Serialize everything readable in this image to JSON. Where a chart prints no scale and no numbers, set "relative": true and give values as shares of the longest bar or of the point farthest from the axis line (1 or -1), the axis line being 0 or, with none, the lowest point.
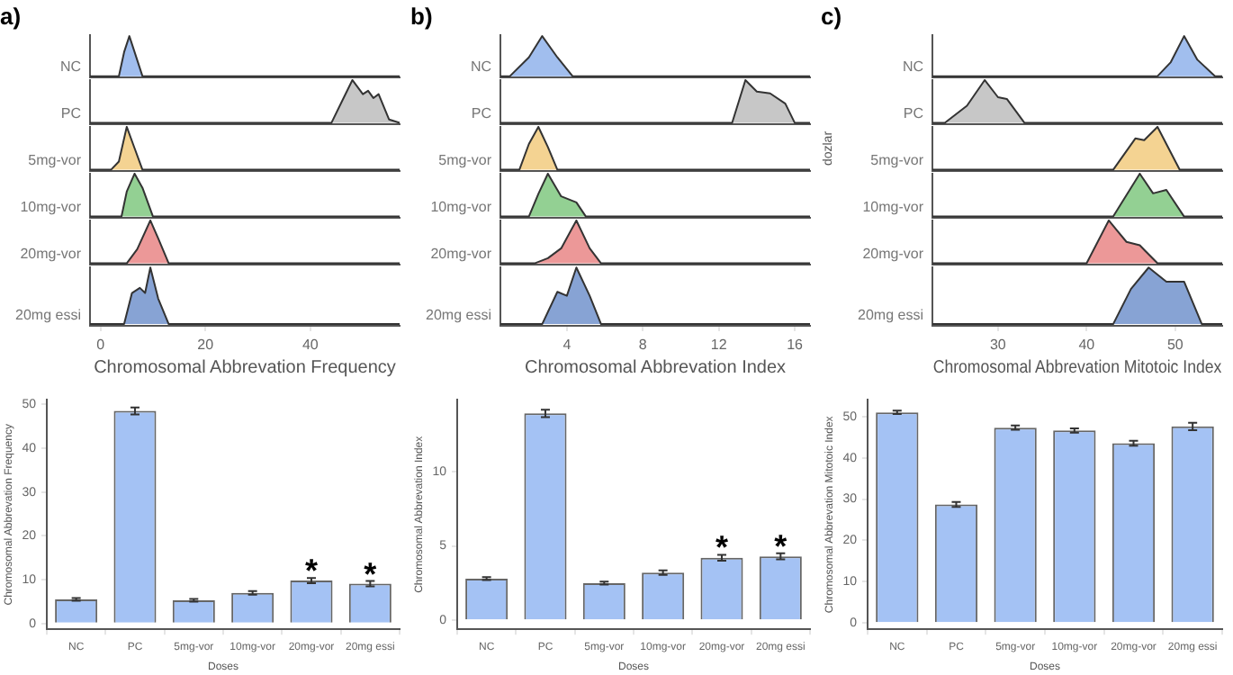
{
  "chart_data": [
    {
      "type": "area",
      "title": "a)",
      "relative": true,
      "xlim": [
        -2,
        57
      ],
      "tick_labels": false,
      "series": [
        {
          "name": "NC",
          "color": "#7fa7e8",
          "x": [
            -2,
            3.5,
            4.5,
            5.5,
            6.5,
            8,
            57
          ],
          "values": [
            0,
            0,
            0.6,
            1,
            0.6,
            0,
            0
          ]
        }
      ]
    },
    {
      "type": "area",
      "relative": true,
      "xlim": [
        -2,
        57
      ],
      "tick_labels": false,
      "series": [
        {
          "name": "PC",
          "color": "#b3b3b3",
          "x": [
            -2,
            44,
            46,
            48,
            50,
            51,
            52,
            53,
            55,
            57
          ],
          "values": [
            0,
            0,
            0.5,
            1,
            0.67,
            0.75,
            0.58,
            0.67,
            0.08,
            0
          ]
        }
      ]
    },
    {
      "type": "area",
      "relative": true,
      "xlim": [
        -2,
        57
      ],
      "tick_labels": false,
      "series": [
        {
          "name": "5mg-vor",
          "color": "#f0c36b",
          "x": [
            -2,
            2,
            3.5,
            5,
            6.5,
            8,
            57
          ],
          "values": [
            0,
            0,
            0.19,
            1,
            0.5,
            0,
            0
          ]
        }
      ]
    },
    {
      "type": "area",
      "relative": true,
      "xlim": [
        -2,
        57
      ],
      "tick_labels": false,
      "series": [
        {
          "name": "10mg-vor",
          "color": "#6cbf6c",
          "x": [
            -2,
            4,
            5,
            6.5,
            8,
            10,
            57
          ],
          "values": [
            0,
            0,
            0.58,
            1,
            0.67,
            0,
            0
          ]
        }
      ]
    },
    {
      "type": "area",
      "relative": true,
      "xlim": [
        -2,
        57
      ],
      "tick_labels": false,
      "series": [
        {
          "name": "20mg-vor",
          "color": "#e57373",
          "x": [
            -2,
            5,
            7,
            9.5,
            11,
            13,
            57
          ],
          "values": [
            0,
            0,
            0.33,
            1,
            0.58,
            0,
            0
          ]
        }
      ]
    },
    {
      "type": "area",
      "xlabel": "Chromosomal Abbrevation Frequency",
      "relative": true,
      "xlim": [
        -2,
        57
      ],
      "xticks": [
        0,
        20,
        40
      ],
      "tick_labels": "x",
      "series": [
        {
          "name": "20mg essi",
          "color": "#5b82c4",
          "x": [
            -2,
            4.5,
            6,
            7.5,
            8.5,
            9.5,
            11,
            13,
            57
          ],
          "values": [
            0,
            0,
            0.55,
            0.64,
            0.55,
            1,
            0.45,
            0,
            0
          ]
        }
      ]
    },
    {
      "type": "area",
      "title": "b)",
      "relative": true,
      "xlim": [
        0.5,
        16.8
      ],
      "tick_labels": false,
      "series": [
        {
          "name": "NC",
          "color": "#7fa7e8",
          "x": [
            0.5,
            1,
            2,
            2.7,
            3.5,
            4.3,
            16.8
          ],
          "values": [
            0,
            0,
            0.47,
            1,
            0.47,
            0,
            0
          ]
        }
      ]
    },
    {
      "type": "area",
      "relative": true,
      "xlim": [
        0.5,
        16.8
      ],
      "tick_labels": false,
      "series": [
        {
          "name": "PC",
          "color": "#b3b3b3",
          "x": [
            0.5,
            12.7,
            13.4,
            14,
            14.7,
            15.5,
            16,
            16.8
          ],
          "values": [
            0,
            0,
            1,
            0.73,
            0.69,
            0.45,
            0,
            0
          ]
        }
      ]
    },
    {
      "type": "area",
      "relative": true,
      "xlim": [
        0.5,
        16.8
      ],
      "tick_labels": false,
      "series": [
        {
          "name": "5mg-vor",
          "color": "#f0c36b",
          "x": [
            0.5,
            1.5,
            2,
            2.5,
            3,
            3.5,
            16.8
          ],
          "values": [
            0,
            0,
            0.6,
            1,
            0.53,
            0,
            0
          ]
        }
      ]
    },
    {
      "type": "area",
      "relative": true,
      "xlim": [
        0.5,
        16.8
      ],
      "tick_labels": false,
      "series": [
        {
          "name": "10mg-vor",
          "color": "#6cbf6c",
          "x": [
            0.5,
            2,
            2.5,
            3,
            3.7,
            4.5,
            5,
            16.8
          ],
          "values": [
            0,
            0,
            0.53,
            1,
            0.47,
            0.33,
            0,
            0
          ]
        }
      ]
    },
    {
      "type": "area",
      "relative": true,
      "xlim": [
        0.5,
        16.8
      ],
      "tick_labels": false,
      "series": [
        {
          "name": "20mg-vor",
          "color": "#e57373",
          "x": [
            0.5,
            2.3,
            3,
            3.7,
            4.5,
            5.2,
            5.8,
            16.8
          ],
          "values": [
            0,
            0,
            0.12,
            0.35,
            1,
            0.35,
            0,
            0
          ]
        }
      ]
    },
    {
      "type": "area",
      "xlabel": "Chromosomal Abbrevation Index",
      "relative": true,
      "xlim": [
        0.5,
        16.8
      ],
      "xticks": [
        4,
        8,
        12,
        16
      ],
      "tick_labels": "x",
      "series": [
        {
          "name": "20mg essi",
          "color": "#5b82c4",
          "x": [
            0.5,
            2.7,
            3.5,
            4,
            4.5,
            5.2,
            5.8,
            16.8
          ],
          "values": [
            0,
            0,
            0.57,
            0.5,
            1,
            0.5,
            0,
            0
          ]
        }
      ]
    },
    {
      "type": "area",
      "title": "c)",
      "relative": true,
      "xlim": [
        22.6,
        55.3
      ],
      "tick_labels": false,
      "series": [
        {
          "name": "NC",
          "color": "#7fa7e8",
          "x": [
            22.6,
            48,
            49.5,
            51,
            52.5,
            54.5,
            55.3
          ],
          "values": [
            0,
            0,
            0.35,
            1,
            0.41,
            0,
            0
          ]
        }
      ]
    },
    {
      "type": "area",
      "relative": true,
      "xlim": [
        22.6,
        55.3
      ],
      "tick_labels": false,
      "series": [
        {
          "name": "PC",
          "color": "#b3b3b3",
          "x": [
            22.6,
            24,
            26.5,
            28.5,
            30,
            31,
            33,
            55.3
          ],
          "values": [
            0,
            0,
            0.4,
            1,
            0.6,
            0.56,
            0,
            0
          ]
        }
      ]
    },
    {
      "type": "area",
      "relative": true,
      "xlim": [
        22.6,
        55.3
      ],
      "tick_labels": false,
      "ylabel": "dozlar",
      "series": [
        {
          "name": "5mg-vor",
          "color": "#f0c36b",
          "x": [
            22.6,
            43,
            45.5,
            46.5,
            48,
            50.5,
            55.3
          ],
          "values": [
            0,
            0,
            0.73,
            0.69,
            1,
            0,
            0
          ]
        }
      ]
    },
    {
      "type": "area",
      "relative": true,
      "xlim": [
        22.6,
        55.3
      ],
      "tick_labels": false,
      "series": [
        {
          "name": "10mg-vor",
          "color": "#6cbf6c",
          "x": [
            22.6,
            43,
            46,
            47.5,
            49,
            51,
            55.3
          ],
          "values": [
            0,
            0,
            1,
            0.54,
            0.62,
            0,
            0
          ]
        }
      ]
    },
    {
      "type": "area",
      "relative": true,
      "xlim": [
        22.6,
        55.3
      ],
      "tick_labels": false,
      "series": [
        {
          "name": "20mg-vor",
          "color": "#e57373",
          "x": [
            22.6,
            40,
            42.5,
            44.5,
            46,
            48,
            55.3
          ],
          "values": [
            0,
            0,
            1,
            0.5,
            0.42,
            0,
            0
          ]
        }
      ]
    },
    {
      "type": "area",
      "xlabel": "Chromosomal Abbrevation Mitotoic Index",
      "relative": true,
      "xlim": [
        22.6,
        55.3
      ],
      "xticks": [
        30,
        40,
        50
      ],
      "tick_labels": "x",
      "series": [
        {
          "name": "20mg essi",
          "color": "#5b82c4",
          "x": [
            22.6,
            43,
            45,
            47,
            49,
            51,
            53,
            55.3
          ],
          "values": [
            0,
            0,
            0.62,
            1,
            0.75,
            0.75,
            0,
            0
          ]
        }
      ]
    },
    {
      "type": "bar",
      "xlabel": "Doses",
      "ylabel": "Chromosomal Abbrevation Frequency",
      "categories": [
        "NC",
        "PC",
        "5mg-vor",
        "10mg-vor",
        "20mg-vor",
        "20mg essi"
      ],
      "values": [
        5.5,
        48.5,
        5.3,
        7.0,
        9.8,
        9.1
      ],
      "errors": [
        0.3,
        0.8,
        0.3,
        0.4,
        0.6,
        0.6
      ],
      "color": "#a4c2f4",
      "ylim": [
        -1.3,
        51
      ],
      "yticks": [
        0,
        10,
        20,
        30,
        40,
        50
      ],
      "annotations": [
        {
          "text": "*",
          "x": "20mg-vor",
          "y": 9.8
        },
        {
          "text": "*",
          "x": "20mg essi",
          "y": 9.1
        }
      ]
    },
    {
      "type": "bar",
      "xlabel": "Doses",
      "ylabel": "Chromosomal Abbrevation Index",
      "categories": [
        "NC",
        "PC",
        "5mg-vor",
        "10mg-vor",
        "20mg-vor",
        "20mg essi"
      ],
      "values": [
        2.8,
        13.9,
        2.5,
        3.2,
        4.2,
        4.3
      ],
      "errors": [
        0.1,
        0.25,
        0.1,
        0.15,
        0.2,
        0.2
      ],
      "color": "#a4c2f4",
      "ylim": [
        -0.6,
        14.8
      ],
      "yticks": [
        0,
        5,
        10
      ],
      "annotations": [
        {
          "text": "*",
          "x": "20mg-vor",
          "y": 4.2
        },
        {
          "text": "*",
          "x": "20mg essi",
          "y": 4.3
        }
      ]
    },
    {
      "type": "bar",
      "xlabel": "Doses",
      "ylabel": "Chromosomal Abbrevation Mitotoic Index",
      "categories": [
        "NC",
        "PC",
        "5mg-vor",
        "10mg-vor",
        "20mg-vor",
        "20mg essi"
      ],
      "values": [
        51,
        28.7,
        47.3,
        46.6,
        43.5,
        47.6
      ],
      "errors": [
        0.4,
        0.6,
        0.5,
        0.5,
        0.6,
        0.9
      ],
      "color": "#a4c2f4",
      "ylim": [
        -1.5,
        54
      ],
      "yticks": [
        0,
        10,
        20,
        30,
        40,
        50
      ]
    }
  ]
}
